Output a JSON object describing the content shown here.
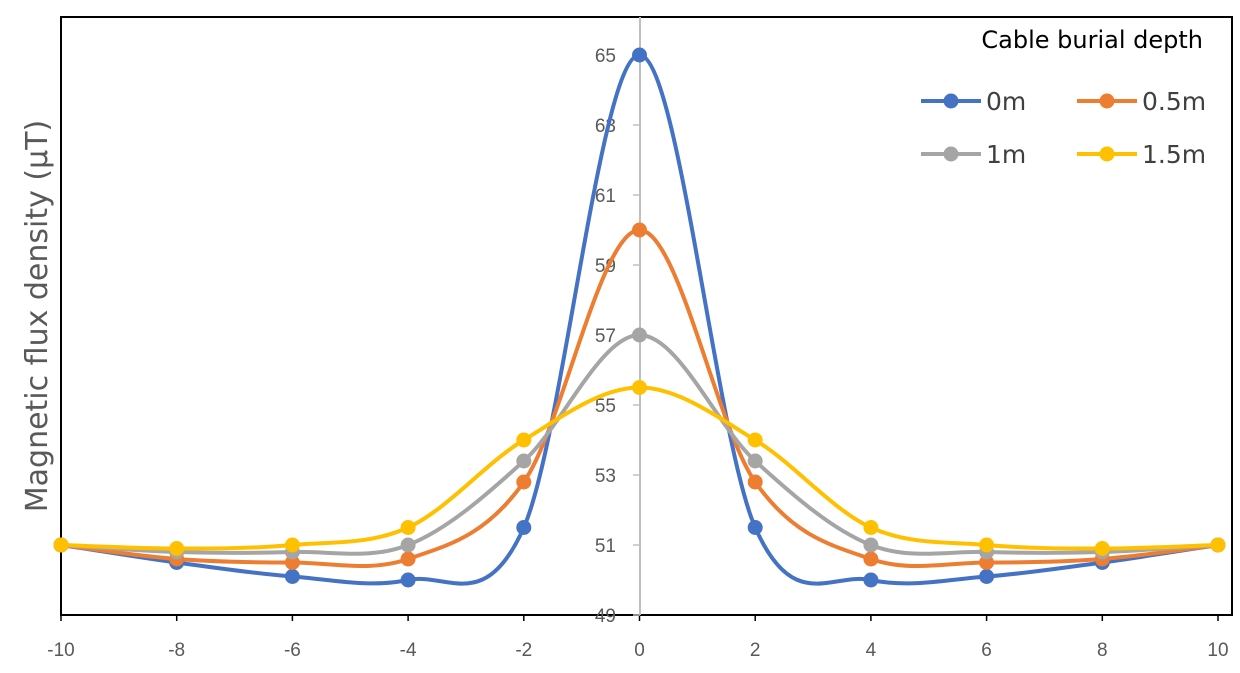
{
  "chart_data": {
    "type": "line",
    "title": "",
    "xlabel": "",
    "ylabel": "Magnetic flux density (μT)",
    "xlim": [
      -10,
      10
    ],
    "ylim": [
      49,
      66
    ],
    "x": [
      -10,
      -8,
      -6,
      -4,
      -2,
      0,
      2,
      4,
      6,
      8,
      10
    ],
    "x_tick_labels": [
      "-10",
      "-8",
      "-6",
      "-4",
      "-2",
      "0",
      "2",
      "4",
      "6",
      "8",
      "10"
    ],
    "y_tick_labels": [
      "49",
      "51",
      "53",
      "55",
      "57",
      "59",
      "61",
      "63",
      "65"
    ],
    "legend_title": "Cable burial depth",
    "legend_position": "top-right",
    "grid": false,
    "series": [
      {
        "name": "0m",
        "color": "#4472C4",
        "values": [
          51.0,
          50.5,
          50.1,
          50.0,
          51.5,
          65.0,
          51.5,
          50.0,
          50.1,
          50.5,
          51.0
        ]
      },
      {
        "name": "0.5m",
        "color": "#ED7D31",
        "values": [
          51.0,
          50.6,
          50.5,
          50.6,
          52.8,
          60.0,
          52.8,
          50.6,
          50.5,
          50.6,
          51.0
        ]
      },
      {
        "name": "1m",
        "color": "#A5A5A5",
        "values": [
          51.0,
          50.8,
          50.8,
          51.0,
          53.4,
          57.0,
          53.4,
          51.0,
          50.8,
          50.8,
          51.0
        ]
      },
      {
        "name": "1.5m",
        "color": "#FFC000",
        "values": [
          51.0,
          50.9,
          51.0,
          51.5,
          54.0,
          55.5,
          54.0,
          51.5,
          51.0,
          50.9,
          51.0
        ]
      }
    ]
  }
}
